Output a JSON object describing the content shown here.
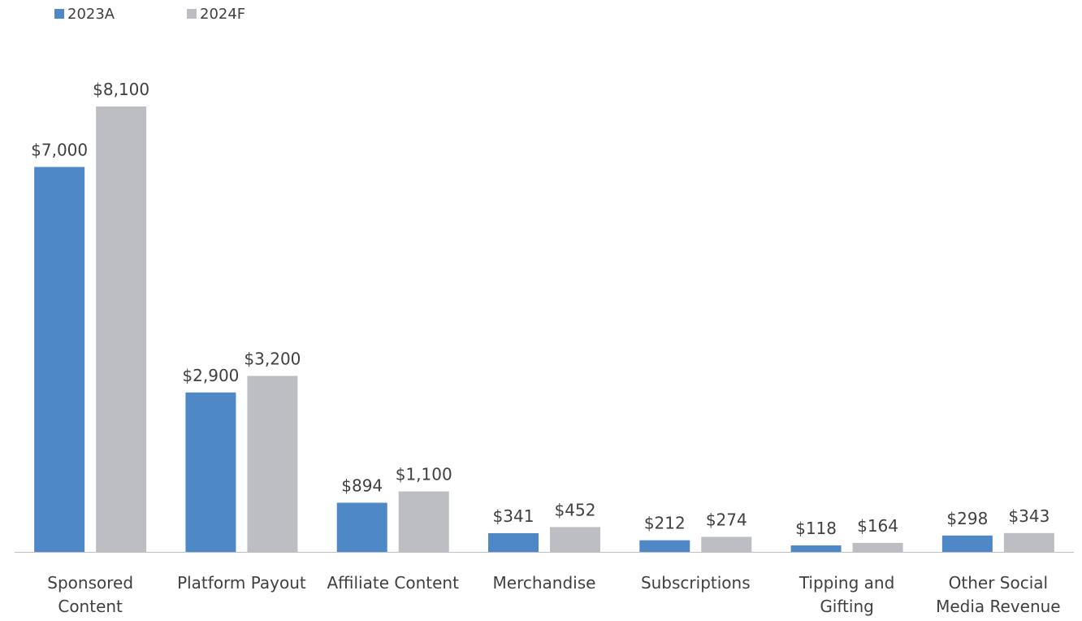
{
  "chart_data": {
    "type": "bar",
    "categories": [
      "Sponsored Content",
      "Platform Payout",
      "Affiliate Content",
      "Merchandise",
      "Subscriptions",
      "Tipping and Gifting",
      "Other Social Media Revenue"
    ],
    "series": [
      {
        "name": "2023A",
        "color": "#4e88c7",
        "values": [
          7000,
          2900,
          894,
          341,
          212,
          118,
          298
        ],
        "value_labels": [
          "$7,000",
          "$2,900",
          "$894",
          "$341",
          "$212",
          "$118",
          "$298"
        ]
      },
      {
        "name": "2024F",
        "color": "#bcbec4",
        "values": [
          8100,
          3200,
          1100,
          452,
          274,
          164,
          343
        ],
        "value_labels": [
          "$8,100",
          "$3,200",
          "$1,100",
          "$452",
          "$274",
          "$164",
          "$343"
        ]
      }
    ],
    "legend": "top-left"
  }
}
